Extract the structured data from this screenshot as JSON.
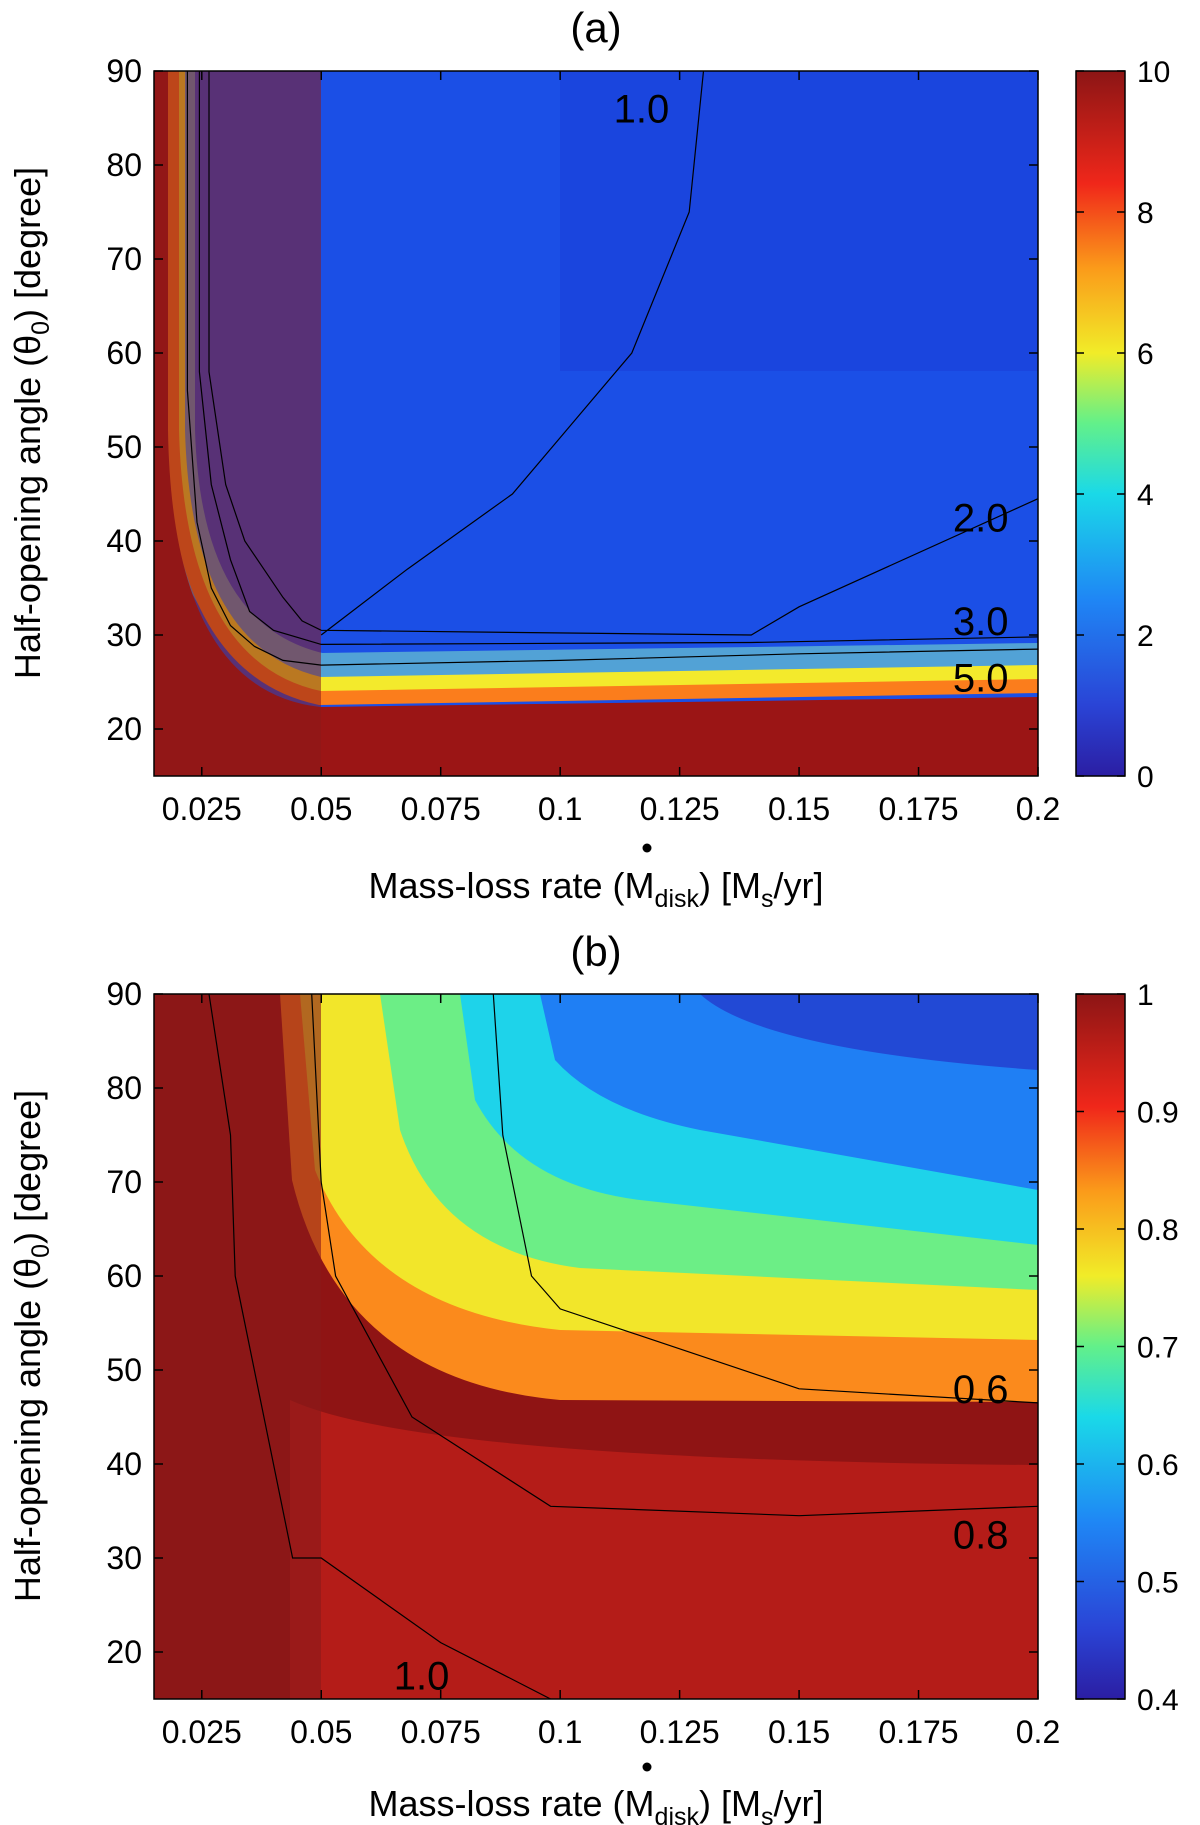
{
  "chart_data": [
    {
      "panel": "a",
      "type": "heatmap",
      "title": "(a)",
      "xlabel": "Mass-loss rate (Ṁdisk) [Ms/yr]",
      "xlabel_parts": {
        "pre": "Mass-loss rate (",
        "sym": "M",
        "sub": "disk",
        "mid": ") [M",
        "sub2": "s",
        "post": "/yr]"
      },
      "ylabel": "Half-opening angle (θ0) [degree]",
      "ylabel_parts": {
        "pre": "Half-opening angle (",
        "sym": "θ",
        "sub": "0",
        "post": ") [degree]"
      },
      "xlim": [
        0.015,
        0.2
      ],
      "ylim": [
        15,
        90
      ],
      "xticks": [
        0.025,
        0.05,
        0.075,
        0.1,
        0.125,
        0.15,
        0.175,
        0.2
      ],
      "xtick_labels": [
        "0.025",
        "0.05",
        "0.075",
        "0.1",
        "0.125",
        "0.15",
        "0.175",
        "0.2"
      ],
      "yticks": [
        20,
        30,
        40,
        50,
        60,
        70,
        80,
        90
      ],
      "ytick_labels": [
        "20",
        "30",
        "40",
        "50",
        "60",
        "70",
        "80",
        "90"
      ],
      "colorbar": {
        "min": 0,
        "max": 10,
        "ticks": [
          0,
          2,
          4,
          6,
          8,
          10
        ],
        "tick_labels": [
          "0",
          "2",
          "4",
          "6",
          "8",
          "10"
        ]
      },
      "shaded_region": {
        "x_from": 0.015,
        "x_to": 0.05
      },
      "contours": [
        {
          "level": "1.0",
          "points": [
            [
              0.05,
              30
            ],
            [
              0.068,
              37
            ],
            [
              0.09,
              45
            ],
            [
              0.1,
              51
            ],
            [
              0.115,
              60
            ],
            [
              0.127,
              75
            ],
            [
              0.13,
              90
            ]
          ]
        },
        {
          "level": "2.0",
          "points": [
            [
              0.0265,
              90
            ],
            [
              0.0265,
              58
            ],
            [
              0.03,
              46
            ],
            [
              0.034,
              40
            ],
            [
              0.038,
              37
            ],
            [
              0.042,
              34
            ],
            [
              0.046,
              31.5
            ],
            [
              0.05,
              30.5
            ],
            [
              0.14,
              30
            ],
            [
              0.15,
              33
            ],
            [
              0.2,
              44.5
            ]
          ]
        },
        {
          "level": "3.0",
          "points": [
            [
              0.0245,
              90
            ],
            [
              0.0245,
              58
            ],
            [
              0.027,
              46
            ],
            [
              0.031,
              38
            ],
            [
              0.035,
              32.5
            ],
            [
              0.04,
              30.5
            ],
            [
              0.05,
              29
            ],
            [
              0.14,
              29.2
            ],
            [
              0.2,
              29.8
            ]
          ]
        },
        {
          "level": "5.0",
          "points": [
            [
              0.022,
              90
            ],
            [
              0.022,
              56
            ],
            [
              0.024,
              42
            ],
            [
              0.027,
              35
            ],
            [
              0.031,
              31
            ],
            [
              0.036,
              28.8
            ],
            [
              0.042,
              27.3
            ],
            [
              0.05,
              26.8
            ],
            [
              0.1,
              27.3
            ],
            [
              0.15,
              28
            ],
            [
              0.2,
              28.5
            ]
          ]
        }
      ],
      "contour_labels": [
        {
          "text": "1.0",
          "x": 0.117,
          "y": 86
        },
        {
          "text": "2.0",
          "x": 0.188,
          "y": 42.5
        },
        {
          "text": "3.0",
          "x": 0.188,
          "y": 31.5
        },
        {
          "text": "5.0",
          "x": 0.188,
          "y": 25.5
        }
      ]
    },
    {
      "panel": "b",
      "type": "heatmap",
      "title": "(b)",
      "xlabel": "Mass-loss rate (Ṁdisk) [Ms/yr]",
      "xlabel_parts": {
        "pre": "Mass-loss rate (",
        "sym": "M",
        "sub": "disk",
        "mid": ") [M",
        "sub2": "s",
        "post": "/yr]"
      },
      "ylabel": "Half-opening angle (θ0) [degree]",
      "ylabel_parts": {
        "pre": "Half-opening angle (",
        "sym": "θ",
        "sub": "0",
        "post": ") [degree]"
      },
      "xlim": [
        0.015,
        0.2
      ],
      "ylim": [
        15,
        90
      ],
      "xticks": [
        0.025,
        0.05,
        0.075,
        0.1,
        0.125,
        0.15,
        0.175,
        0.2
      ],
      "xtick_labels": [
        "0.025",
        "0.05",
        "0.075",
        "0.1",
        "0.125",
        "0.15",
        "0.175",
        "0.2"
      ],
      "yticks": [
        20,
        30,
        40,
        50,
        60,
        70,
        80,
        90
      ],
      "ytick_labels": [
        "20",
        "30",
        "40",
        "50",
        "60",
        "70",
        "80",
        "90"
      ],
      "colorbar": {
        "min": 0.4,
        "max": 1,
        "ticks": [
          0.4,
          0.5,
          0.6,
          0.7,
          0.8,
          0.9,
          1
        ],
        "tick_labels": [
          "0.4",
          "0.5",
          "0.6",
          "0.7",
          "0.8",
          "0.9",
          "1"
        ]
      },
      "shaded_region": {
        "x_from": 0.015,
        "x_to": 0.05
      },
      "contours": [
        {
          "level": "1.0",
          "points": [
            [
              0.0265,
              90
            ],
            [
              0.031,
              75
            ],
            [
              0.032,
              60
            ],
            [
              0.044,
              30
            ],
            [
              0.05,
              30
            ],
            [
              0.075,
              21
            ],
            [
              0.098,
              15
            ]
          ]
        },
        {
          "level": "0.8",
          "points": [
            [
              0.048,
              90
            ],
            [
              0.05,
              70
            ],
            [
              0.053,
              60
            ],
            [
              0.069,
              45
            ],
            [
              0.098,
              35.5
            ],
            [
              0.15,
              34.5
            ],
            [
              0.2,
              35.5
            ]
          ]
        },
        {
          "level": "0.6",
          "points": [
            [
              0.086,
              90
            ],
            [
              0.088,
              75
            ],
            [
              0.094,
              60
            ],
            [
              0.1,
              56.5
            ],
            [
              0.15,
              48
            ],
            [
              0.2,
              46.5
            ]
          ]
        }
      ],
      "contour_labels": [
        {
          "text": "0.6",
          "x": 0.188,
          "y": 48
        },
        {
          "text": "0.8",
          "x": 0.188,
          "y": 32.5
        },
        {
          "text": "1.0",
          "x": 0.071,
          "y": 17.5
        }
      ]
    }
  ]
}
